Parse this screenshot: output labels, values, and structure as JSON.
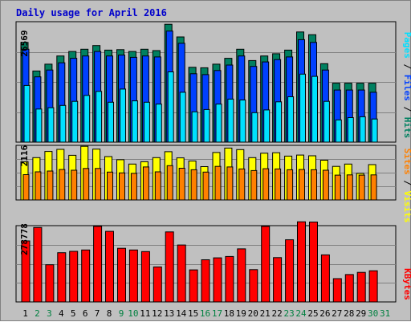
{
  "chart_data": {
    "type": "bar",
    "title": "Daily usage for April 2016",
    "days": [
      "1",
      "2",
      "3",
      "4",
      "5",
      "6",
      "7",
      "8",
      "9",
      "10",
      "11",
      "12",
      "13",
      "14",
      "15",
      "16",
      "17",
      "18",
      "19",
      "20",
      "21",
      "22",
      "23",
      "24",
      "25",
      "26",
      "27",
      "28",
      "29",
      "30",
      "31"
    ],
    "weekend_days": [
      "2",
      "3",
      "9",
      "10",
      "16",
      "17",
      "23",
      "24",
      "30",
      "31"
    ],
    "colors": {
      "title": "#0000cc",
      "hits": "#008060",
      "files": "#0040ff",
      "pages": "#00e0ff",
      "visits": "#ffff00",
      "sites": "#ff8000",
      "kbytes": "#ff0000",
      "weekend_label": "#008040"
    },
    "panel1": {
      "max_label": "26569",
      "ymax": 26569,
      "legend": {
        "pages": "Pages",
        "files": "Files",
        "hits": "Hits",
        "sep": " / "
      },
      "hits": [
        22000,
        15700,
        17200,
        19000,
        20000,
        20500,
        21300,
        20300,
        20400,
        20000,
        20500,
        20200,
        26000,
        23200,
        16500,
        16400,
        17200,
        18500,
        20500,
        18000,
        19000,
        19500,
        20300,
        24300,
        23700,
        17300,
        13000,
        13000,
        13000,
        13000,
        null
      ],
      "files": [
        20500,
        14400,
        15900,
        17500,
        18500,
        19000,
        20000,
        19000,
        19200,
        18700,
        19000,
        18800,
        24500,
        21800,
        15100,
        14900,
        15800,
        17000,
        19000,
        16700,
        17700,
        18200,
        18800,
        22600,
        22000,
        15900,
        11500,
        11500,
        11500,
        11000,
        null
      ],
      "pages": [
        12500,
        7300,
        7600,
        8100,
        9000,
        10300,
        11200,
        8800,
        11700,
        9100,
        8800,
        8400,
        15500,
        11000,
        6700,
        7200,
        8400,
        9500,
        9300,
        6500,
        7100,
        8900,
        10000,
        15000,
        14500,
        9000,
        4900,
        5400,
        5600,
        5100,
        null
      ]
    },
    "panel2": {
      "max_label": "2116",
      "ymax": 2116,
      "legend": {
        "sites": "Sites",
        "visits": "Visits",
        "sep": " / "
      },
      "visits": [
        1480,
        1640,
        1880,
        1960,
        1730,
        2080,
        1970,
        1680,
        1560,
        1390,
        1480,
        1640,
        1870,
        1630,
        1510,
        1290,
        1840,
        2010,
        1950,
        1640,
        1810,
        1830,
        1700,
        1740,
        1710,
        1540,
        1300,
        1390,
        1030,
        1370,
        null
      ],
      "sites": [
        980,
        1090,
        1120,
        1180,
        1150,
        1220,
        1220,
        1080,
        1050,
        1030,
        1280,
        1090,
        1330,
        1230,
        1170,
        1080,
        1300,
        1280,
        1200,
        1140,
        1210,
        1200,
        1170,
        1180,
        1170,
        1150,
        960,
        970,
        960,
        970,
        null
      ]
    },
    "panel3": {
      "max_label": "278778",
      "ymax": 278778,
      "legend": {
        "kbytes": "KBytes"
      },
      "kbytes": [
        223000,
        272000,
        136000,
        180000,
        185000,
        190000,
        276000,
        258000,
        196000,
        190000,
        184000,
        128000,
        256000,
        208000,
        117000,
        154000,
        161000,
        166000,
        194000,
        118000,
        276000,
        162000,
        227000,
        293000,
        292000,
        172000,
        85000,
        100000,
        108000,
        114000,
        null
      ]
    }
  }
}
